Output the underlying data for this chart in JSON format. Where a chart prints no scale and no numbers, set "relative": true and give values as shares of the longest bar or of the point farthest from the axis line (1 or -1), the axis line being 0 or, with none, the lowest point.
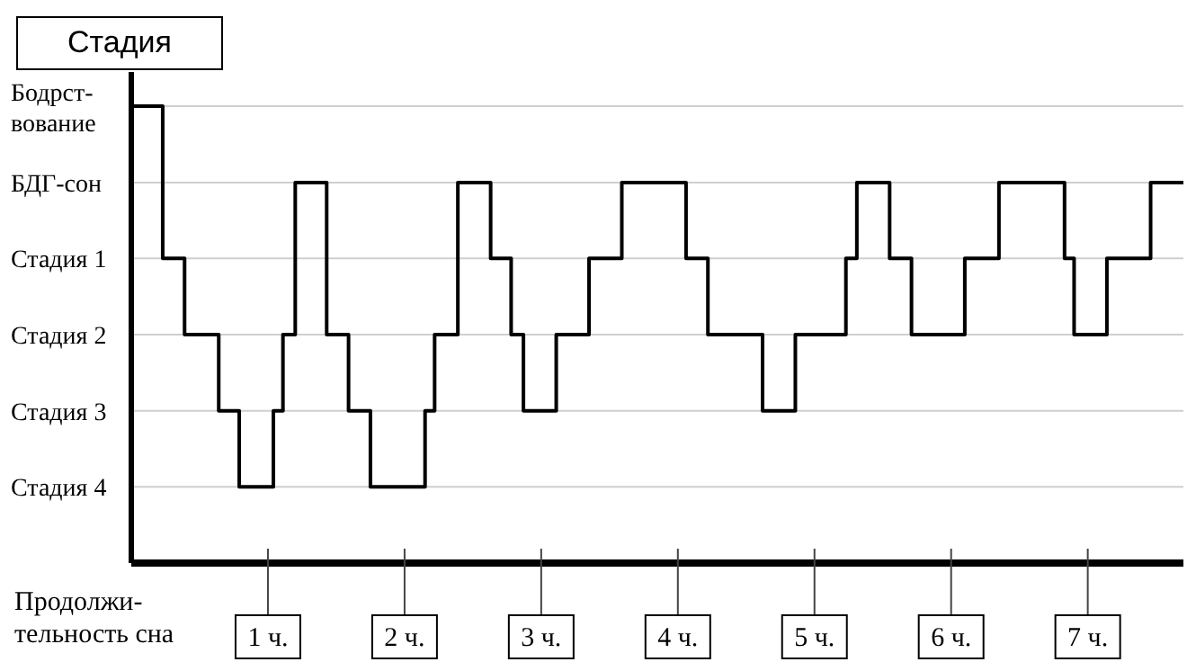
{
  "chart_data": {
    "type": "step",
    "relative": true,
    "annotations": [
      "Стадия"
    ],
    "xlabel": "Продолжи-\nтельность сна",
    "x": [
      0,
      0.23,
      0.39,
      0.64,
      0.79,
      1.04,
      1.11,
      1.2,
      1.43,
      1.59,
      1.75,
      2.15,
      2.22,
      2.39,
      2.63,
      2.78,
      2.87,
      3.11,
      3.35,
      3.59,
      4.06,
      4.22,
      4.62,
      4.86,
      5.23,
      5.31,
      5.55,
      5.71,
      6.1,
      6.35,
      6.83,
      6.9,
      7.14,
      7.46,
      7.7
    ],
    "series": [
      {
        "color": "#000000",
        "values": [
          1,
          0.667,
          0.5,
          0.333,
          0.167,
          0.333,
          0.5,
          0.833,
          0.5,
          0.333,
          0.167,
          0.333,
          0.5,
          0.833,
          0.667,
          0.5,
          0.333,
          0.5,
          0.667,
          0.833,
          0.667,
          0.5,
          0.333,
          0.5,
          0.667,
          0.833,
          0.667,
          0.5,
          0.667,
          0.833,
          0.667,
          0.5,
          0.667,
          0.833,
          0.833
        ]
      }
    ],
    "xlim": [
      0,
      7.7
    ],
    "xticks": [
      {
        "value": 1,
        "label": "1 ч."
      },
      {
        "value": 2,
        "label": "2 ч."
      },
      {
        "value": 3,
        "label": "3 ч."
      },
      {
        "value": 4,
        "label": "4 ч."
      },
      {
        "value": 5,
        "label": "5 ч."
      },
      {
        "value": 6,
        "label": "6 ч."
      },
      {
        "value": 7,
        "label": "7 ч."
      }
    ],
    "ref_lines": [
      {
        "axis": "y",
        "value": 1,
        "label": "Бодрст-\nвование",
        "color": "#cfcfcf"
      },
      {
        "axis": "y",
        "value": 0.833,
        "label": "БДГ-сон",
        "color": "#cfcfcf"
      },
      {
        "axis": "y",
        "value": 0.667,
        "label": "Стадия 1",
        "color": "#cfcfcf"
      },
      {
        "axis": "y",
        "value": 0.5,
        "label": "Стадия 2",
        "color": "#cfcfcf"
      },
      {
        "axis": "y",
        "value": 0.333,
        "label": "Стадия 3",
        "color": "#cfcfcf"
      },
      {
        "axis": "y",
        "value": 0.167,
        "label": "Стадия 4",
        "color": "#cfcfcf"
      }
    ]
  }
}
